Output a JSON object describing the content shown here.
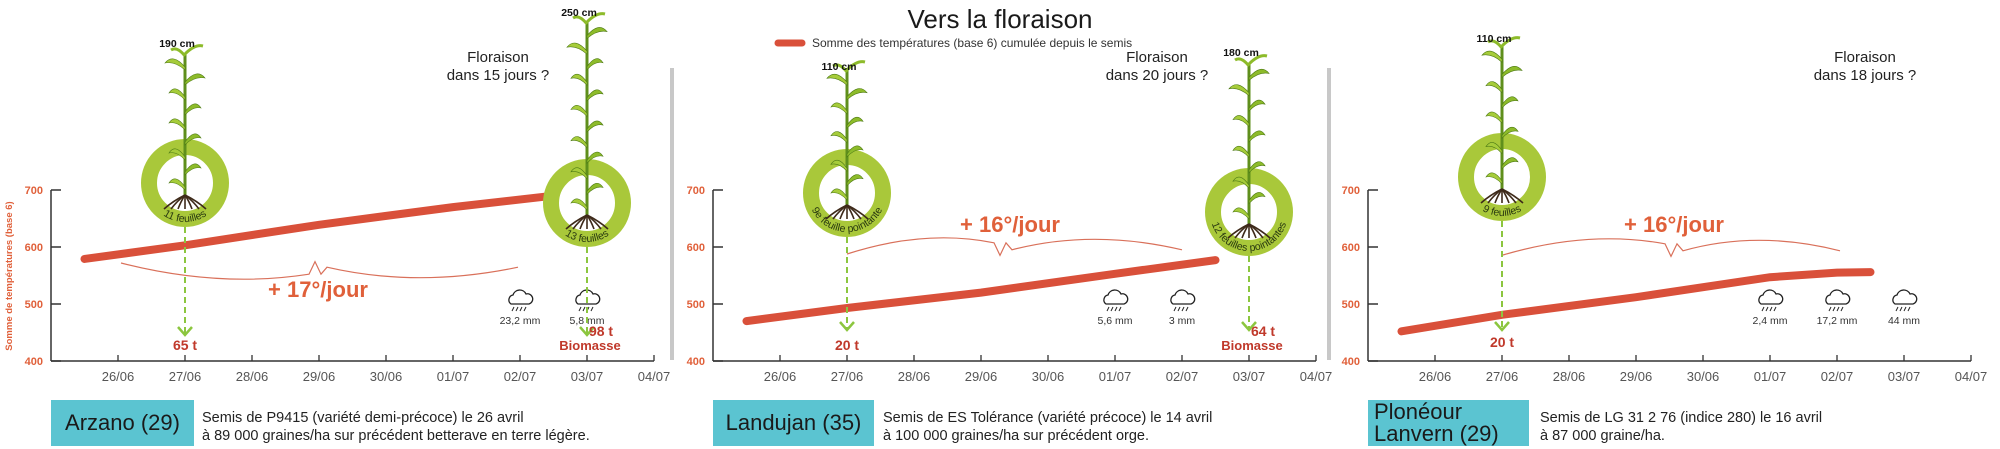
{
  "title": "Vers la floraison",
  "legend": "Somme des températures (base 6) cumulée depuis le semis",
  "y_axis_label": "Somme de températures (base 6)",
  "colors": {
    "line": "#d9503a",
    "ring": "#a9c83a",
    "arrow": "#8cc63f",
    "biomass": "#c0392b",
    "box": "#5bc4d1",
    "ticks": "#e0603a"
  },
  "chart_data": {
    "type": "line",
    "title": "Vers la floraison",
    "ylabel": "Somme de températures (base 6)",
    "ylim": [
      400,
      700
    ],
    "yticks": [
      400,
      500,
      600,
      700
    ],
    "categories": [
      "26/06",
      "27/06",
      "28/06",
      "29/06",
      "30/06",
      "01/07",
      "02/07",
      "03/07",
      "04/07"
    ],
    "x_note": "x values in days after 26/06",
    "panels": [
      {
        "location": "Arzano (29)",
        "description": [
          "Semis de P9415 (variété demi-précoce) le 26 avril",
          "à 89 000 graines/ha sur précédent betterave en terre légère."
        ],
        "series": [
          [
            -0.5,
            579
          ],
          [
            1,
            603
          ],
          [
            3,
            639
          ],
          [
            5,
            670
          ],
          [
            6.5,
            690
          ]
        ],
        "rate": "+ 17°/jour",
        "floraison": [
          "Floraison",
          "dans 15 jours ?"
        ],
        "plants": [
          {
            "date_index": 1,
            "height": "190 cm",
            "stage": "11 feuilles",
            "biomass": "65 t",
            "biomass_label": ""
          },
          {
            "date_index": 7,
            "height": "250 cm",
            "stage": "13 feuilles",
            "biomass": "98 t",
            "biomass_label": "Biomasse"
          }
        ],
        "rain": [
          {
            "date_index": 6,
            "mm": "23,2 mm"
          },
          {
            "date_index": 7,
            "mm": "5,8 mm"
          }
        ]
      },
      {
        "location": "Landujan (35)",
        "description": [
          "Semis de ES Tolérance (variété précoce) le 14 avril",
          "à 100 000 graines/ha sur précédent orge."
        ],
        "series": [
          [
            -0.5,
            470
          ],
          [
            1,
            493
          ],
          [
            3,
            520
          ],
          [
            5,
            553
          ],
          [
            6.5,
            577
          ]
        ],
        "rate": "+ 16°/jour",
        "floraison": [
          "Floraison",
          "dans 20 jours ?"
        ],
        "plants": [
          {
            "date_index": 1,
            "height": "110 cm",
            "stage": "9e feuille pointante",
            "biomass": "20 t",
            "biomass_label": ""
          },
          {
            "date_index": 7,
            "height": "180 cm",
            "stage": "12 feuilles pointantes",
            "biomass": "64 t",
            "biomass_label": "Biomasse"
          }
        ],
        "rain": [
          {
            "date_index": 5,
            "mm": "5,6 mm"
          },
          {
            "date_index": 6,
            "mm": "3 mm"
          }
        ]
      },
      {
        "location": "Plonéour Lanvern (29)",
        "description": [
          "Semis de LG 31 2 76 (indice 280) le 16 avril",
          "à 87 000 graine/ha."
        ],
        "series": [
          [
            -0.5,
            452
          ],
          [
            1,
            481
          ],
          [
            3,
            512
          ],
          [
            5,
            547
          ],
          [
            6,
            555
          ],
          [
            6.5,
            556
          ]
        ],
        "rate": "+ 16°/jour",
        "floraison": [
          "Floraison",
          "dans 18 jours ?"
        ],
        "plants": [
          {
            "date_index": 1,
            "height": "110 cm",
            "stage": "9 feuilles",
            "biomass": "20 t",
            "biomass_label": ""
          }
        ],
        "rain": [
          {
            "date_index": 5,
            "mm": "2,4 mm"
          },
          {
            "date_index": 6,
            "mm": "17,2 mm"
          },
          {
            "date_index": 7,
            "mm": "44 mm"
          }
        ]
      }
    ]
  }
}
